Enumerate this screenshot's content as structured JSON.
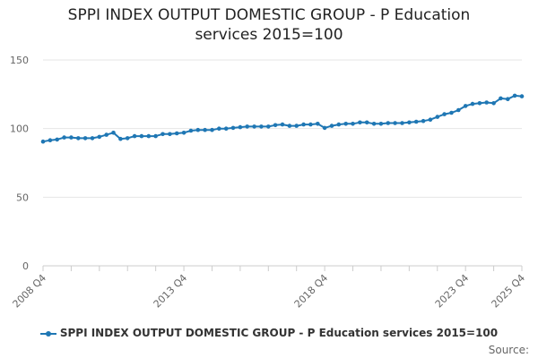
{
  "chart_data": {
    "type": "line",
    "title": "SPPI INDEX OUTPUT DOMESTIC GROUP - P Education services 2015=100",
    "title_lines": [
      "SPPI INDEX OUTPUT DOMESTIC GROUP - P Education",
      "services 2015=100"
    ],
    "xlabel": "",
    "ylabel": "",
    "ylim": [
      0,
      150
    ],
    "yticks": [
      0,
      50,
      100,
      150
    ],
    "x_tick_labels": [
      "2008 Q4",
      "2013 Q4",
      "2018 Q4",
      "2023 Q4",
      "2025 Q4"
    ],
    "x": [
      "2008 Q4",
      "2009 Q1",
      "2009 Q2",
      "2009 Q3",
      "2009 Q4",
      "2010 Q1",
      "2010 Q2",
      "2010 Q3",
      "2010 Q4",
      "2011 Q1",
      "2011 Q2",
      "2011 Q3",
      "2011 Q4",
      "2012 Q1",
      "2012 Q2",
      "2012 Q3",
      "2012 Q4",
      "2013 Q1",
      "2013 Q2",
      "2013 Q3",
      "2013 Q4",
      "2014 Q1",
      "2014 Q2",
      "2014 Q3",
      "2014 Q4",
      "2015 Q1",
      "2015 Q2",
      "2015 Q3",
      "2015 Q4",
      "2016 Q1",
      "2016 Q2",
      "2016 Q3",
      "2016 Q4",
      "2017 Q1",
      "2017 Q2",
      "2017 Q3",
      "2017 Q4",
      "2018 Q1",
      "2018 Q2",
      "2018 Q3",
      "2018 Q4",
      "2019 Q1",
      "2019 Q2",
      "2019 Q3",
      "2019 Q4",
      "2020 Q1",
      "2020 Q2",
      "2020 Q3",
      "2020 Q4",
      "2021 Q1",
      "2021 Q2",
      "2021 Q3",
      "2021 Q4",
      "2022 Q1",
      "2022 Q2",
      "2022 Q3",
      "2022 Q4",
      "2023 Q1",
      "2023 Q2",
      "2023 Q3",
      "2023 Q4",
      "2024 Q1",
      "2024 Q2",
      "2024 Q3",
      "2024 Q4",
      "2025 Q1",
      "2025 Q2",
      "2025 Q3",
      "2025 Q4"
    ],
    "series": [
      {
        "name": "SPPI INDEX OUTPUT DOMESTIC GROUP - P Education services 2015=100",
        "color": "#1f77b4",
        "values": [
          90.5,
          91.5,
          92.0,
          93.5,
          93.5,
          93.0,
          93.0,
          93.0,
          94.0,
          95.5,
          97.0,
          92.5,
          93.0,
          94.5,
          94.5,
          94.5,
          94.5,
          96.0,
          96.0,
          96.5,
          97.0,
          98.5,
          99.0,
          99.0,
          99.0,
          100.0,
          100.0,
          100.5,
          101.0,
          101.5,
          101.5,
          101.5,
          101.5,
          102.5,
          103.0,
          102.0,
          102.0,
          103.0,
          103.0,
          103.5,
          100.5,
          102.0,
          103.0,
          103.5,
          103.5,
          104.5,
          104.5,
          103.5,
          103.5,
          104.0,
          104.0,
          104.0,
          104.5,
          105.0,
          105.5,
          106.5,
          108.5,
          110.5,
          111.5,
          113.5,
          116.5,
          118.0,
          118.5,
          119.0,
          118.5,
          122.0,
          121.5,
          124.0,
          123.5
        ]
      }
    ],
    "grid": true,
    "legend_position": "bottom-center"
  },
  "legend": {
    "label": "SPPI INDEX OUTPUT DOMESTIC GROUP - P Education services 2015=100"
  },
  "source": {
    "label": "Source:"
  }
}
